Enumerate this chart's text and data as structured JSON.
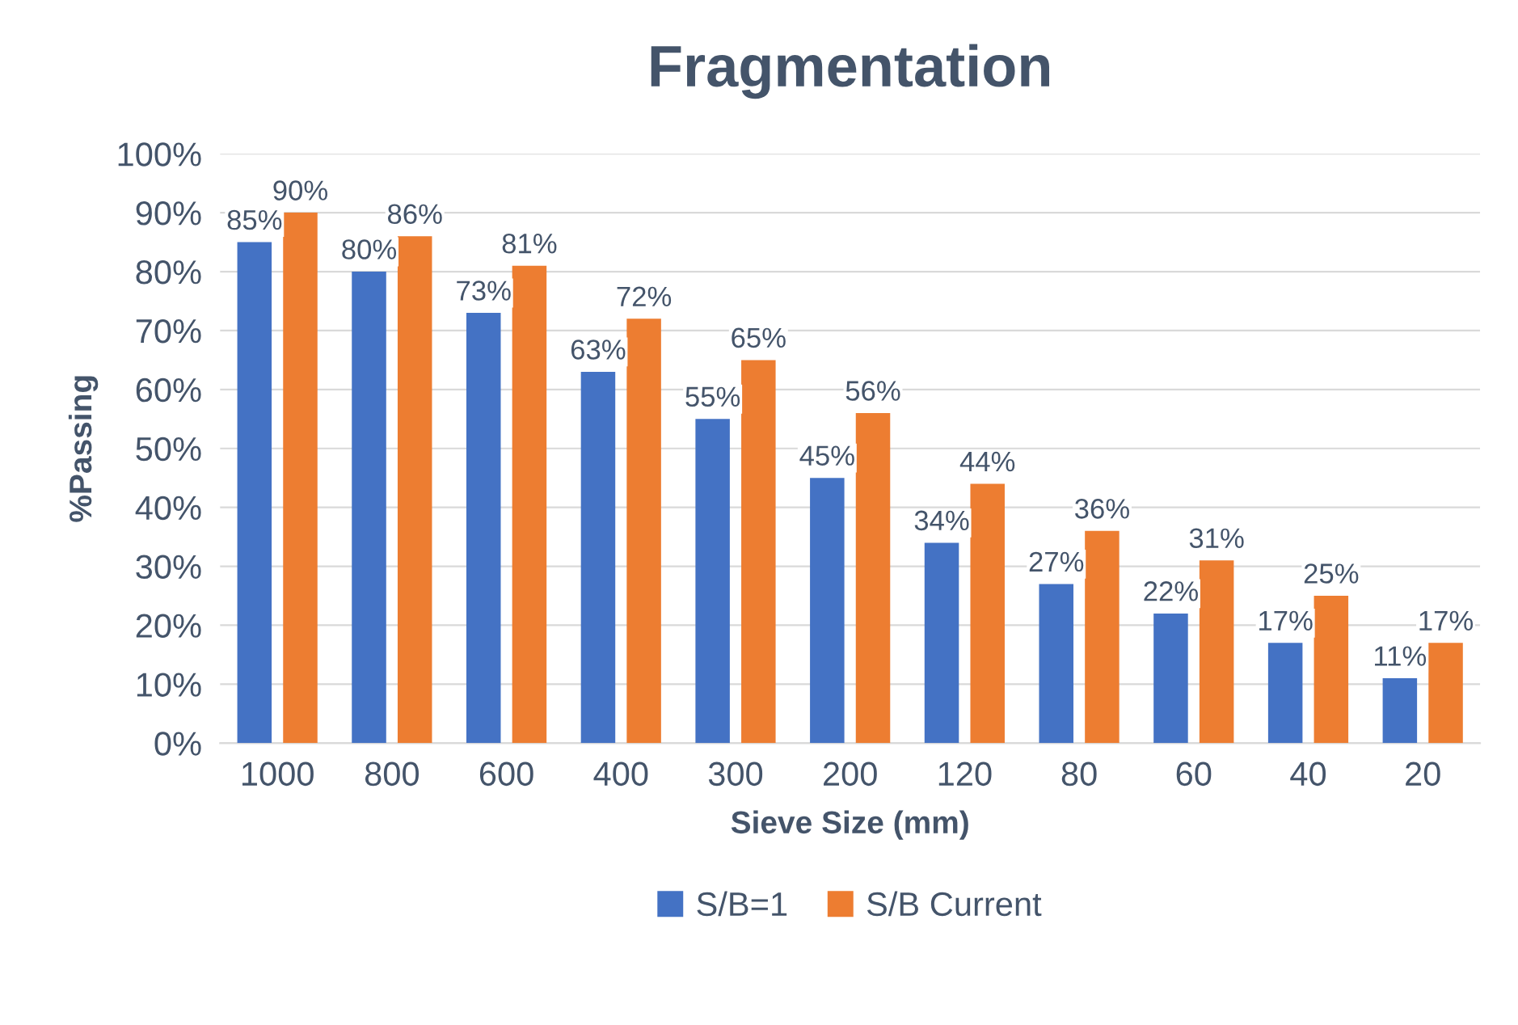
{
  "chart_data": {
    "type": "bar",
    "title": "Fragmentation",
    "xlabel": "Sieve Size (mm)",
    "ylabel": "%Passing",
    "categories": [
      "1000",
      "800",
      "600",
      "400",
      "300",
      "200",
      "120",
      "80",
      "60",
      "40",
      "20"
    ],
    "series": [
      {
        "name": "S/B=1",
        "color": "#4472c4",
        "values": [
          85,
          80,
          73,
          63,
          55,
          45,
          34,
          27,
          22,
          17,
          11
        ],
        "value_labels": [
          "85%",
          "80%",
          "73%",
          "63%",
          "55%",
          "45%",
          "34%",
          "27%",
          "22%",
          "17%",
          "11%"
        ]
      },
      {
        "name": "S/B Current",
        "color": "#ed7d31",
        "values": [
          90,
          86,
          81,
          72,
          65,
          56,
          44,
          36,
          31,
          25,
          17
        ],
        "value_labels": [
          "90%",
          "86%",
          "81%",
          "72%",
          "65%",
          "56%",
          "44%",
          "36%",
          "31%",
          "25%",
          "17%"
        ]
      }
    ],
    "ylim": [
      0,
      100
    ],
    "yticks": [
      {
        "value": 0,
        "label": "0%"
      },
      {
        "value": 10,
        "label": "10%"
      },
      {
        "value": 20,
        "label": "20%"
      },
      {
        "value": 30,
        "label": "30%"
      },
      {
        "value": 40,
        "label": "40%"
      },
      {
        "value": 50,
        "label": "50%"
      },
      {
        "value": 60,
        "label": "60%"
      },
      {
        "value": 70,
        "label": "70%"
      },
      {
        "value": 80,
        "label": "80%"
      },
      {
        "value": 90,
        "label": "90%"
      },
      {
        "value": 100,
        "label": "100%"
      }
    ],
    "grid": "y",
    "legend": "bottom"
  }
}
